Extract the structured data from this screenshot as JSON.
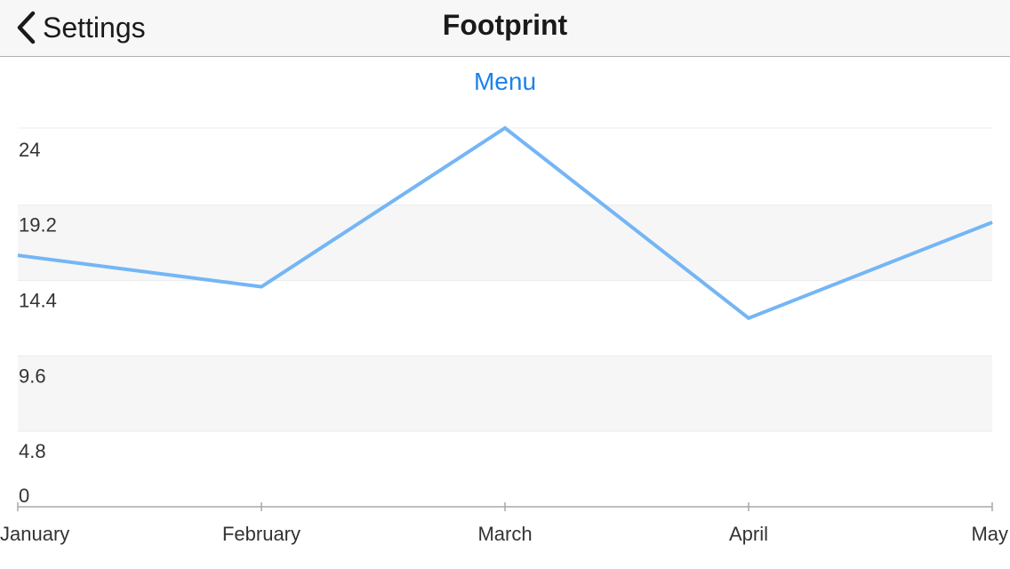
{
  "navbar": {
    "back_label": "Settings",
    "title": "Footprint"
  },
  "menu_label": "Menu",
  "colors": {
    "line": "#74b6f5",
    "link": "#1a82ea",
    "band": "#f6f6f6"
  },
  "chart_data": {
    "type": "line",
    "title": "",
    "xlabel": "",
    "ylabel": "",
    "categories": [
      "January",
      "February",
      "March",
      "April",
      "May"
    ],
    "series": [
      {
        "values": [
          16,
          14,
          24.1,
          12,
          18.1
        ]
      }
    ],
    "ylim": [
      0,
      24.1
    ],
    "y_ticks": [
      "0",
      "4.8",
      "9.6",
      "14.4",
      "19.2",
      "24"
    ],
    "y_tick_values": [
      0,
      4.8,
      9.6,
      14.4,
      19.2,
      24
    ],
    "grid": "alternating horizontal bands",
    "legend": "none"
  }
}
